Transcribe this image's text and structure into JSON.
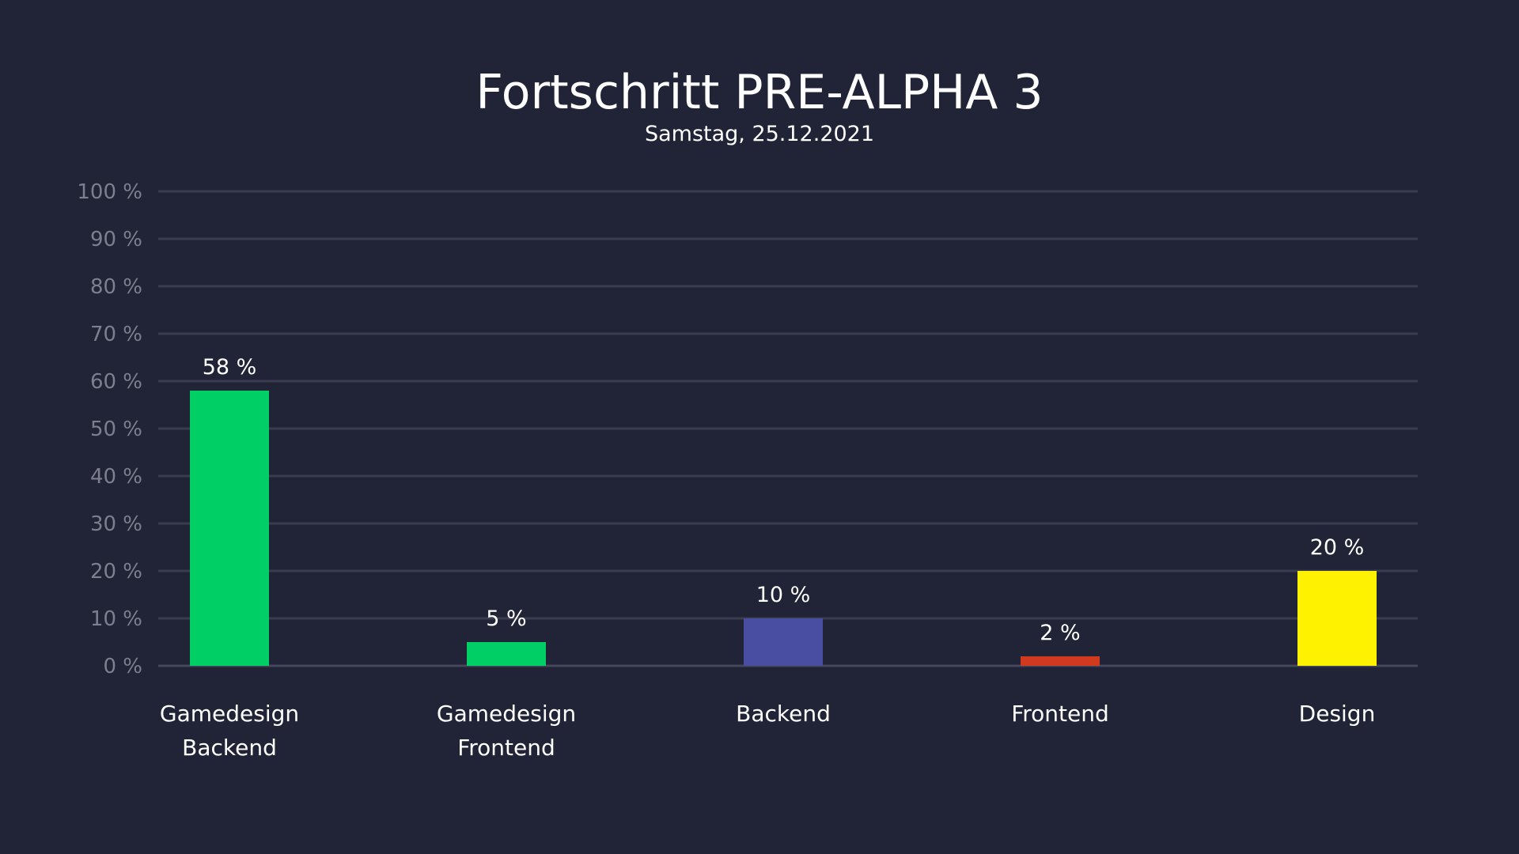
{
  "chart_data": {
    "type": "bar",
    "title": "Fortschritt PRE-ALPHA 3",
    "subtitle": "Samstag, 25.12.2021",
    "xlabel": "",
    "ylabel": "",
    "ylim": [
      0,
      100
    ],
    "y_ticks": [
      0,
      10,
      20,
      30,
      40,
      50,
      60,
      70,
      80,
      90,
      100
    ],
    "y_tick_labels": [
      "0 %",
      "10 %",
      "20 %",
      "30 %",
      "40 %",
      "50 %",
      "60 %",
      "70 %",
      "80 %",
      "90 %",
      "100 %"
    ],
    "grid": true,
    "legend": "none",
    "categories": [
      [
        "Gamedesign",
        "Backend"
      ],
      [
        "Gamedesign",
        "Frontend"
      ],
      [
        "Backend"
      ],
      [
        "Frontend"
      ],
      [
        "Design"
      ]
    ],
    "values": [
      58,
      5,
      10,
      2,
      20
    ],
    "data_labels": [
      "58 %",
      "5 %",
      "10 %",
      "2 %",
      "20 %"
    ],
    "colors": [
      "#00cf66",
      "#00cf66",
      "#4a4ea2",
      "#d23a1f",
      "#fff200"
    ],
    "background": "#212336"
  }
}
